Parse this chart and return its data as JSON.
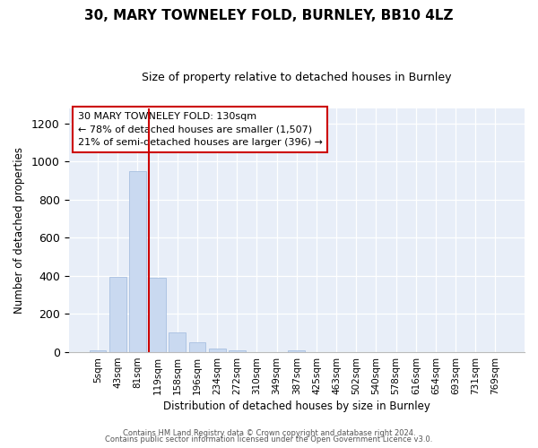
{
  "title": "30, MARY TOWNELEY FOLD, BURNLEY, BB10 4LZ",
  "subtitle": "Size of property relative to detached houses in Burnley",
  "xlabel": "Distribution of detached houses by size in Burnley",
  "ylabel": "Number of detached properties",
  "bar_color": "#c9d9f0",
  "bar_edge_color": "#a8c0e0",
  "background_color": "#e8eef8",
  "categories": [
    "5sqm",
    "43sqm",
    "81sqm",
    "119sqm",
    "158sqm",
    "196sqm",
    "234sqm",
    "272sqm",
    "310sqm",
    "349sqm",
    "387sqm",
    "425sqm",
    "463sqm",
    "502sqm",
    "540sqm",
    "578sqm",
    "616sqm",
    "654sqm",
    "693sqm",
    "731sqm",
    "769sqm"
  ],
  "values": [
    10,
    395,
    950,
    390,
    105,
    50,
    20,
    8,
    0,
    0,
    10,
    0,
    0,
    0,
    0,
    0,
    0,
    0,
    0,
    0,
    0
  ],
  "ylim": [
    0,
    1280
  ],
  "yticks": [
    0,
    200,
    400,
    600,
    800,
    1000,
    1200
  ],
  "vline_index": 3,
  "vline_color": "#cc0000",
  "annotation_line1": "30 MARY TOWNELEY FOLD: 130sqm",
  "annotation_line2": "← 78% of detached houses are smaller (1,507)",
  "annotation_line3": "21% of semi-detached houses are larger (396) →",
  "footer_line1": "Contains HM Land Registry data © Crown copyright and database right 2024.",
  "footer_line2": "Contains public sector information licensed under the Open Government Licence v3.0."
}
